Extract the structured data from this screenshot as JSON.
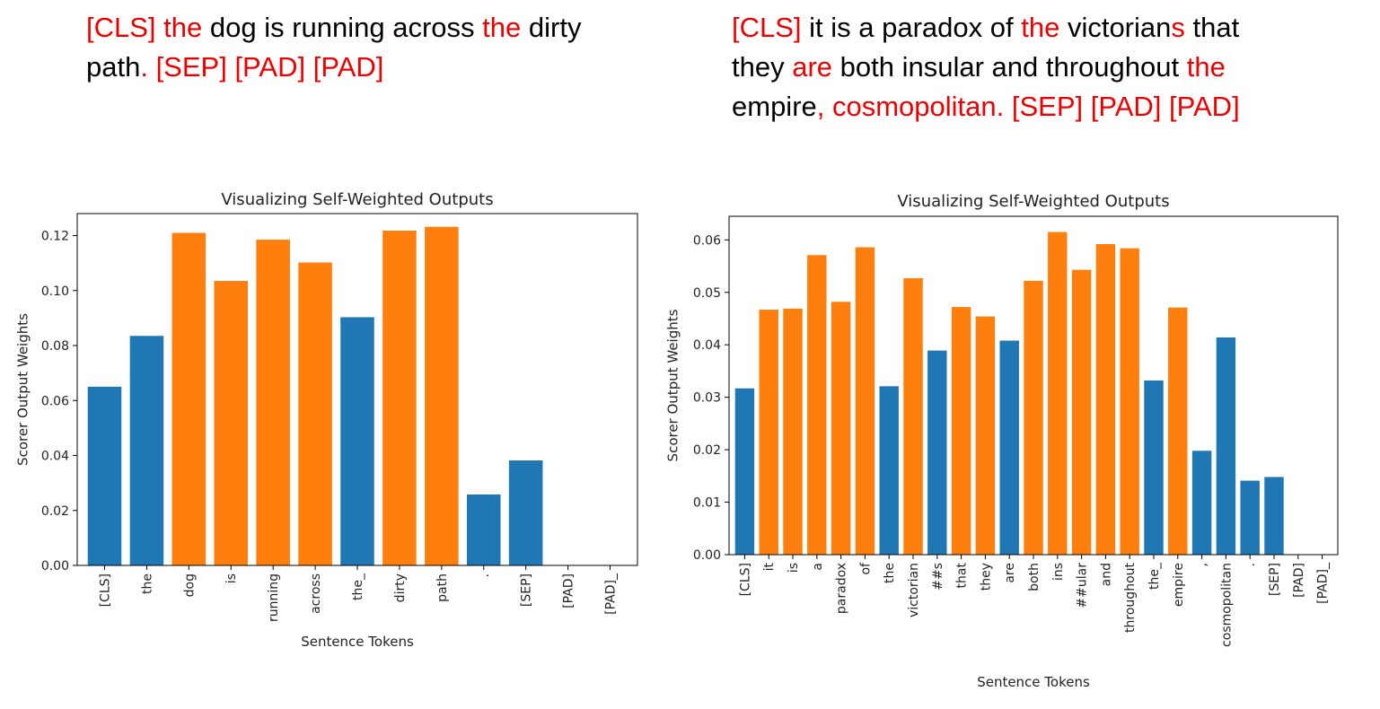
{
  "sentences": [
    {
      "segments": [
        {
          "t": "[CLS]",
          "h": true
        },
        {
          "t": " ",
          "h": false
        },
        {
          "t": "the",
          "h": true
        },
        {
          "t": " dog is running across ",
          "h": false
        },
        {
          "t": "the",
          "h": true
        },
        {
          "t": " dirty path",
          "h": false
        },
        {
          "t": ". [SEP] [PAD] [PAD]",
          "h": true
        }
      ]
    },
    {
      "segments": [
        {
          "t": "[CLS]",
          "h": true
        },
        {
          "t": " it is a paradox of ",
          "h": false
        },
        {
          "t": "the",
          "h": true
        },
        {
          "t": " victorian",
          "h": false
        },
        {
          "t": "s",
          "h": true
        },
        {
          "t": " that they ",
          "h": false
        },
        {
          "t": "are",
          "h": true
        },
        {
          "t": " both insular and throughout ",
          "h": false
        },
        {
          "t": "the",
          "h": true
        },
        {
          "t": " empire",
          "h": false
        },
        {
          "t": ", cosmopolitan. [SEP] [PAD] [PAD]",
          "h": true
        }
      ]
    }
  ],
  "colors": {
    "blue": "#1f77b4",
    "orange": "#ff7f0e",
    "highlight": "#ee0000"
  },
  "chart_data": [
    {
      "type": "bar",
      "title": "Visualizing Self-Weighted Outputs",
      "xlabel": "Sentence Tokens",
      "ylabel": "Scorer Output Weights",
      "ylim": [
        0,
        0.128
      ],
      "yticks": [
        "0.00",
        "0.02",
        "0.04",
        "0.06",
        "0.08",
        "0.10",
        "0.12"
      ],
      "categories": [
        "[CLS]",
        "the",
        "dog",
        "is",
        "running",
        "across",
        "the_",
        "dirty",
        "path",
        ".",
        "[SEP]",
        "[PAD]",
        "[PAD]_"
      ],
      "values": [
        0.065,
        0.0835,
        0.121,
        0.1035,
        0.1185,
        0.1102,
        0.0903,
        0.1218,
        0.1232,
        0.0258,
        0.0382,
        0,
        0
      ],
      "bar_colors": [
        "blue",
        "blue",
        "orange",
        "orange",
        "orange",
        "orange",
        "blue",
        "orange",
        "orange",
        "blue",
        "blue",
        "blue",
        "blue"
      ],
      "grid": false
    },
    {
      "type": "bar",
      "title": "Visualizing Self-Weighted Outputs",
      "xlabel": "Sentence Tokens",
      "ylabel": "Scorer Output Weights",
      "ylim": [
        0,
        0.0645
      ],
      "yticks": [
        "0.00",
        "0.01",
        "0.02",
        "0.03",
        "0.04",
        "0.05",
        "0.06"
      ],
      "categories": [
        "[CLS]",
        "it",
        "is",
        "a",
        "paradox",
        "of",
        "the",
        "victorian",
        "##s",
        "that",
        "they",
        "are",
        "both",
        "ins",
        "##ular",
        "and",
        "throughout",
        "the_",
        "empire",
        ",",
        "cosmopolitan",
        ".",
        "[SEP]",
        "[PAD]",
        "[PAD]_"
      ],
      "values": [
        0.0317,
        0.0467,
        0.0469,
        0.0571,
        0.0482,
        0.0586,
        0.0321,
        0.0527,
        0.0389,
        0.0472,
        0.0454,
        0.0408,
        0.0522,
        0.0615,
        0.0543,
        0.0592,
        0.0584,
        0.0332,
        0.0471,
        0.0198,
        0.0414,
        0.0141,
        0.0148,
        0,
        0
      ],
      "bar_colors": [
        "blue",
        "orange",
        "orange",
        "orange",
        "orange",
        "orange",
        "blue",
        "orange",
        "blue",
        "orange",
        "orange",
        "blue",
        "orange",
        "orange",
        "orange",
        "orange",
        "orange",
        "blue",
        "orange",
        "blue",
        "blue",
        "blue",
        "blue",
        "blue",
        "blue"
      ],
      "grid": false
    }
  ]
}
